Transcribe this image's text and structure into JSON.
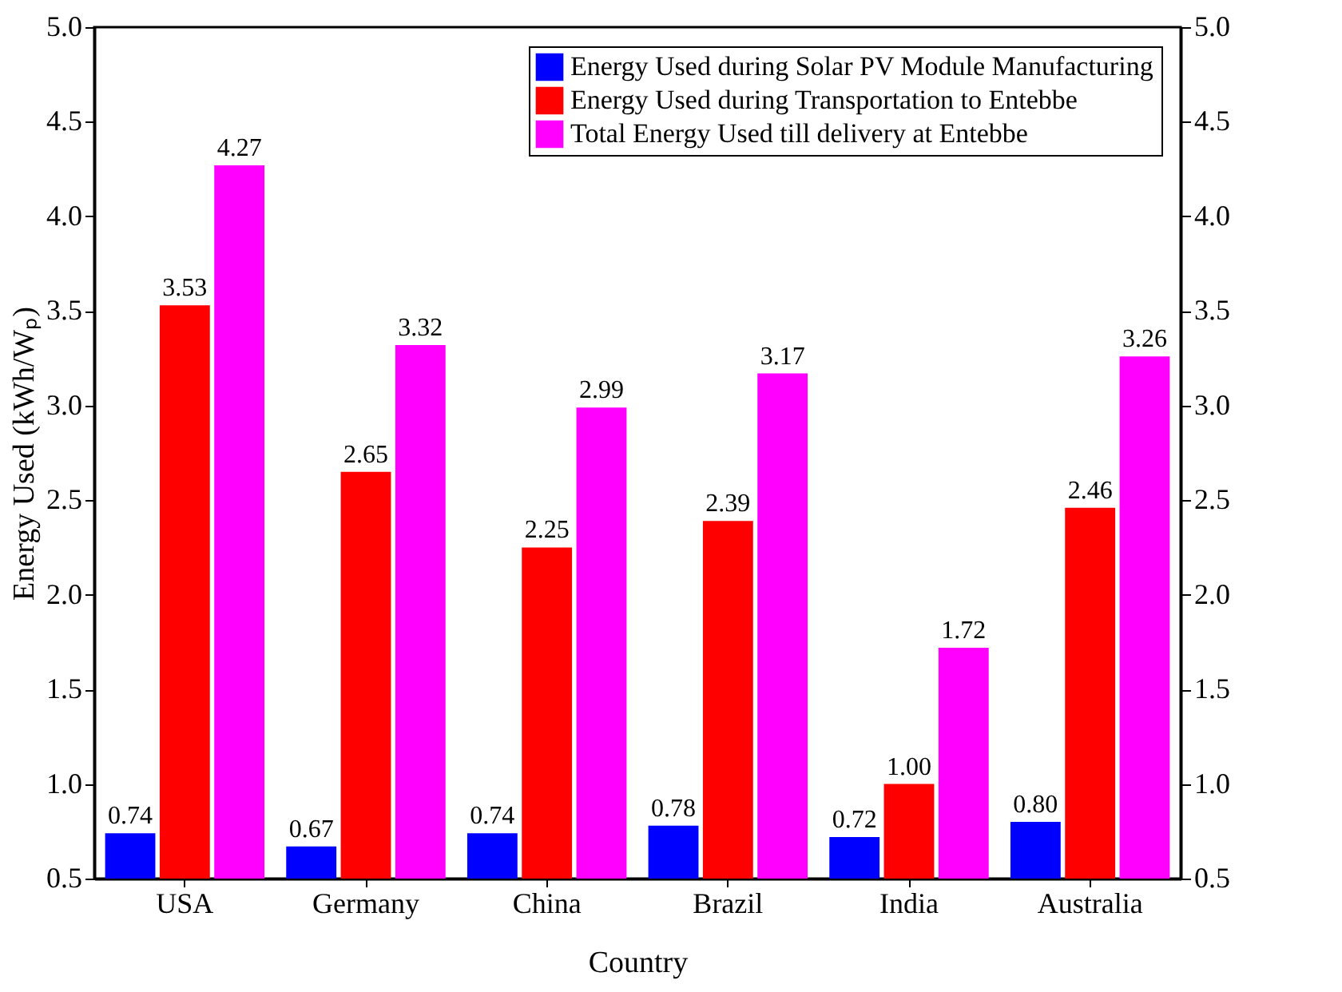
{
  "chart_data": {
    "type": "bar",
    "xlabel": "Country",
    "ylabel": "Energy Used (kWh/Wₚ)",
    "categories": [
      "USA",
      "Germany",
      "China",
      "Brazil",
      "India",
      "Australia"
    ],
    "series": [
      {
        "name": "Energy Used during Solar PV Module Manufacturing",
        "color": "#0000ff",
        "values": [
          0.74,
          0.67,
          0.74,
          0.78,
          0.72,
          0.8
        ],
        "value_labels": [
          "0.74",
          "0.67",
          "0.74",
          "0.78",
          "0.72",
          "0.80"
        ]
      },
      {
        "name": "Energy Used during Transportation to Entebbe",
        "color": "#ff0000",
        "values": [
          3.53,
          2.65,
          2.25,
          2.39,
          1.0,
          2.46
        ],
        "value_labels": [
          "3.53",
          "2.65",
          "2.25",
          "2.39",
          "1.00",
          "2.46"
        ]
      },
      {
        "name": "Total Energy Used till delivery at Entebbe",
        "color": "#ff00ff",
        "values": [
          4.27,
          3.32,
          2.99,
          3.17,
          1.72,
          3.26
        ],
        "value_labels": [
          "4.27",
          "3.32",
          "2.99",
          "3.17",
          "1.72",
          "3.26"
        ]
      }
    ],
    "ylim": [
      0.5,
      5.0
    ],
    "yticks": [
      0.5,
      {
        "value": 1,
        "label": "1.0"
      },
      1.5,
      {
        "value": 2,
        "label": "2.0"
      },
      2.5,
      {
        "value": 3,
        "label": "3.0"
      },
      3.5,
      {
        "value": 4,
        "label": "4.0"
      },
      4.5,
      {
        "value": 5,
        "label": "5.0"
      }
    ],
    "y2lim": [
      0.5,
      5.0
    ],
    "y2ticks": [
      0.5,
      {
        "value": 1,
        "label": "1.0"
      },
      1.5,
      {
        "value": 2,
        "label": "2.0"
      },
      2.5,
      {
        "value": 3,
        "label": "3.0"
      },
      3.5,
      {
        "value": 4,
        "label": "4.0"
      },
      4.5,
      {
        "value": 5,
        "label": "5.0"
      }
    ],
    "grid": false,
    "legend": "top right"
  }
}
